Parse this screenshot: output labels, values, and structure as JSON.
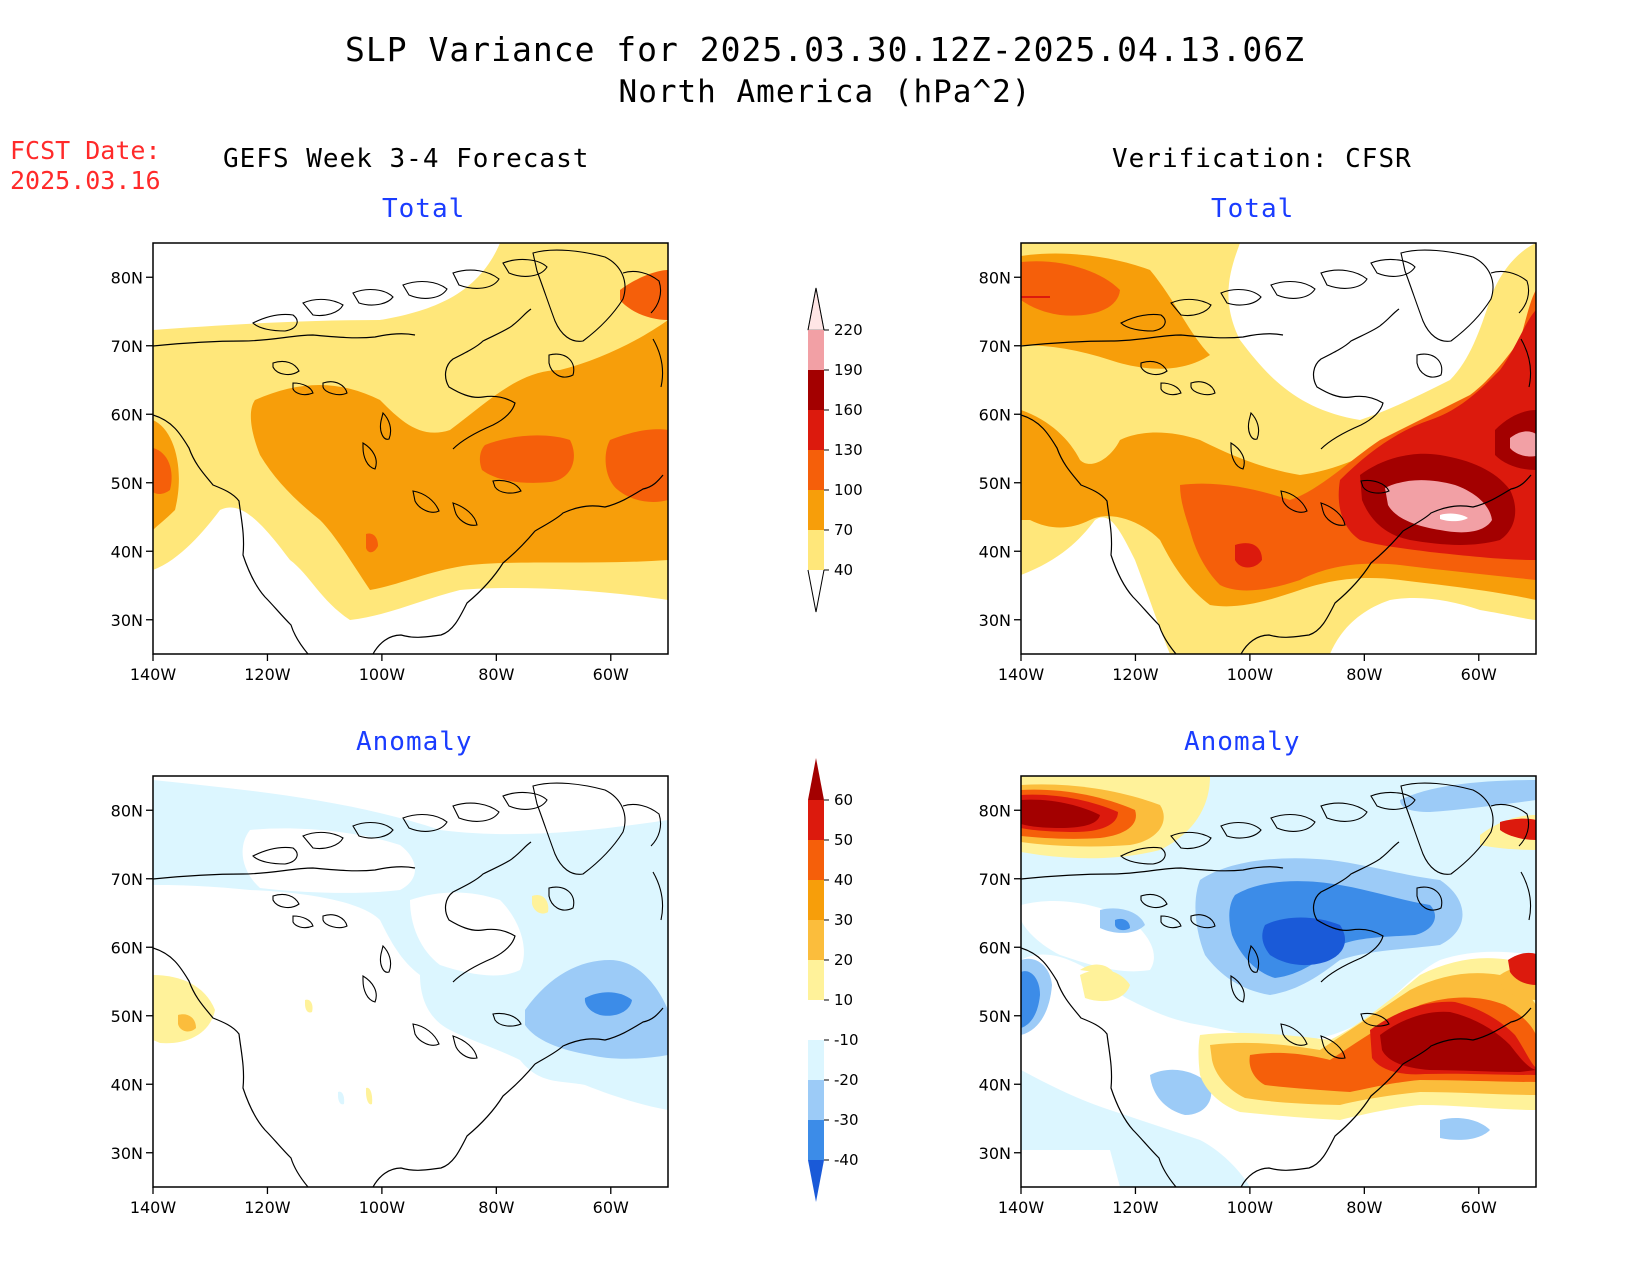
{
  "title_line1": "SLP Variance for 2025.03.30.12Z-2025.04.13.06Z",
  "title_line2": "North America (hPa^2)",
  "fcst_label": "FCST Date:",
  "fcst_value": "2025.03.16",
  "left_column_title": "GEFS Week 3-4 Forecast",
  "right_column_title": "Verification: CFSR",
  "panel_total_label": "Total",
  "panel_anomaly_label": "Anomaly",
  "lat_ticks": [
    "80N",
    "70N",
    "60N",
    "50N",
    "40N",
    "30N"
  ],
  "lon_ticks": [
    "140W",
    "120W",
    "100W",
    "80W",
    "60W"
  ],
  "lat_values": [
    80,
    70,
    60,
    50,
    40,
    30
  ],
  "lon_values": [
    -140,
    -120,
    -100,
    -80,
    -60
  ],
  "map_extent": {
    "lon_min": -140,
    "lon_max": -50,
    "lat_min": 25,
    "lat_max": 85
  },
  "total_colorbar": {
    "labels": [
      "220",
      "190",
      "160",
      "130",
      "100",
      "70",
      "40"
    ],
    "colors": [
      "#ffe6e6",
      "#f2a0a5",
      "#a30000",
      "#dc1a0d",
      "#f55f0a",
      "#f79e0a",
      "#ffe77a"
    ]
  },
  "anomaly_colorbar": {
    "labels": [
      "60",
      "50",
      "40",
      "30",
      "20",
      "10",
      "-10",
      "-20",
      "-30",
      "-40"
    ],
    "colors": [
      "#a30000",
      "#dc1a0d",
      "#f55f0a",
      "#f79e0a",
      "#fbbd3c",
      "#fff29a",
      "#ffffff",
      "#dcf6ff",
      "#9ccbf7",
      "#3c8ce8",
      "#1a5ad8"
    ]
  }
}
